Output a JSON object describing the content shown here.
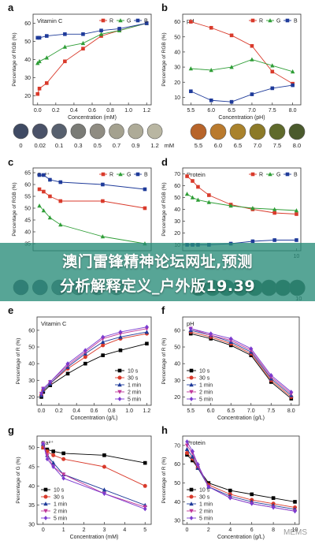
{
  "banner": {
    "line1": "澳门雷锋精神论坛网址,预测",
    "line2": "分析解释定义_户外版19.39"
  },
  "watermark": "MEMS",
  "swatch_unit": "mM",
  "colors": {
    "R": "#d93a2b",
    "G": "#2f9e37",
    "B": "#1f3b9a",
    "t10s": "#000000",
    "t30s": "#d93a2b",
    "t1min": "#1f3b9a",
    "t2min": "#c0399a",
    "t5min": "#7a3bd0"
  },
  "chart_data": [
    {
      "id": "a",
      "type": "line",
      "panel_letter": "a",
      "title": "Vitamin C",
      "xlabel": "Concentration (mM)",
      "ylabel": "Percentage of RGB (%)",
      "xlim": [
        -0.05,
        1.25
      ],
      "ylim": [
        15,
        65
      ],
      "xticks": [
        "0.0",
        "0.2",
        "0.4",
        "0.6",
        "0.8",
        "1.0",
        "1.2"
      ],
      "xtick_values": [
        0,
        0.2,
        0.4,
        0.6,
        0.8,
        1.0,
        1.2
      ],
      "yticks": [
        "20",
        "30",
        "40",
        "50",
        "60"
      ],
      "ytick_values": [
        20,
        30,
        40,
        50,
        60
      ],
      "legend_position": "top-right",
      "series": [
        {
          "name": "R",
          "marker": "square",
          "color": "#d93a2b",
          "x": [
            0,
            0.02,
            0.1,
            0.3,
            0.5,
            0.7,
            0.9,
            1.2
          ],
          "y": [
            21,
            24,
            27,
            39,
            46,
            53,
            56,
            60
          ]
        },
        {
          "name": "G",
          "marker": "triangle",
          "color": "#2f9e37",
          "x": [
            0,
            0.02,
            0.1,
            0.3,
            0.5,
            0.7,
            0.9,
            1.2
          ],
          "y": [
            38,
            39,
            41,
            47,
            49,
            54,
            56,
            60
          ]
        },
        {
          "name": "B",
          "marker": "square",
          "color": "#1f3b9a",
          "x": [
            0,
            0.02,
            0.1,
            0.3,
            0.5,
            0.7,
            0.9,
            1.2
          ],
          "y": [
            52,
            52,
            53,
            54,
            54,
            56,
            57,
            60
          ]
        }
      ]
    },
    {
      "id": "b",
      "type": "line",
      "panel_letter": "b",
      "title": "pH",
      "xlabel": "Concentration (pH)",
      "ylabel": "Percentage of RGB (%)",
      "xlim": [
        5.3,
        8.2
      ],
      "ylim": [
        5,
        65
      ],
      "xticks": [
        "5.5",
        "6.0",
        "6.5",
        "7.0",
        "7.5",
        "8.0"
      ],
      "xtick_values": [
        5.5,
        6.0,
        6.5,
        7.0,
        7.5,
        8.0
      ],
      "yticks": [
        "10",
        "20",
        "30",
        "40",
        "50",
        "60"
      ],
      "ytick_values": [
        10,
        20,
        30,
        40,
        50,
        60
      ],
      "legend_position": "top-right",
      "series": [
        {
          "name": "R",
          "marker": "square",
          "color": "#d93a2b",
          "x": [
            5.5,
            6.0,
            6.5,
            7.0,
            7.5,
            8.0
          ],
          "y": [
            60,
            56,
            51,
            44,
            27,
            19
          ]
        },
        {
          "name": "G",
          "marker": "triangle",
          "color": "#2f9e37",
          "x": [
            5.5,
            6.0,
            6.5,
            7.0,
            7.5,
            8.0
          ],
          "y": [
            29,
            28,
            30,
            35,
            31,
            27
          ]
        },
        {
          "name": "B",
          "marker": "square",
          "color": "#1f3b9a",
          "x": [
            5.5,
            6.0,
            6.5,
            7.0,
            7.5,
            8.0
          ],
          "y": [
            14,
            8,
            7,
            12,
            16,
            18
          ]
        }
      ]
    },
    {
      "id": "c",
      "type": "line",
      "panel_letter": "c",
      "title": "Ca²⁺",
      "xlabel": "",
      "ylabel": "Percentage of RGB (%)",
      "xlim": [
        -0.3,
        5.3
      ],
      "ylim": [
        32,
        67
      ],
      "xticks": [],
      "xtick_values": [],
      "yticks": [
        "35",
        "40",
        "45",
        "50",
        "55",
        "60",
        "65"
      ],
      "ytick_values": [
        35,
        40,
        45,
        50,
        55,
        60,
        65
      ],
      "legend_position": "top-right",
      "series": [
        {
          "name": "R",
          "marker": "square",
          "color": "#d93a2b",
          "x": [
            0,
            0.2,
            0.5,
            1,
            3,
            5
          ],
          "y": [
            58,
            57,
            55,
            53,
            53,
            50
          ]
        },
        {
          "name": "G",
          "marker": "triangle",
          "color": "#2f9e37",
          "x": [
            0,
            0.2,
            0.5,
            1,
            3,
            5
          ],
          "y": [
            51,
            49,
            46,
            43,
            38,
            35
          ]
        },
        {
          "name": "B",
          "marker": "square",
          "color": "#1f3b9a",
          "x": [
            0,
            0.2,
            0.5,
            1,
            3,
            5
          ],
          "y": [
            64,
            64,
            62,
            61,
            60,
            58
          ]
        }
      ]
    },
    {
      "id": "d",
      "type": "line",
      "panel_letter": "d",
      "title": "Protein",
      "xlabel": "",
      "ylabel": "Percentage of RGB (%)",
      "xlim": [
        -0.4,
        10.4
      ],
      "ylim": [
        5,
        75
      ],
      "xticks": [
        "10"
      ],
      "xtick_values": [
        10
      ],
      "yticks": [
        "10",
        "20",
        "30",
        "40",
        "50",
        "60",
        "70"
      ],
      "ytick_values": [
        10,
        20,
        30,
        40,
        50,
        60,
        70
      ],
      "legend_position": "top-right",
      "series": [
        {
          "name": "R",
          "marker": "square",
          "color": "#d93a2b",
          "x": [
            0,
            0.5,
            1,
            2,
            4,
            6,
            8,
            10
          ],
          "y": [
            68,
            64,
            59,
            52,
            44,
            40,
            37,
            36
          ]
        },
        {
          "name": "G",
          "marker": "triangle",
          "color": "#2f9e37",
          "x": [
            0,
            0.5,
            1,
            2,
            4,
            6,
            8,
            10
          ],
          "y": [
            53,
            50,
            48,
            46,
            43,
            41,
            40,
            39
          ]
        },
        {
          "name": "B",
          "marker": "square",
          "color": "#1f3b9a",
          "x": [
            0,
            0.5,
            1,
            2,
            4,
            6,
            8,
            10
          ],
          "y": [
            10,
            10,
            10,
            10,
            11,
            13,
            14,
            14
          ]
        }
      ]
    },
    {
      "id": "e",
      "type": "line",
      "panel_letter": "e",
      "title": "Vitamin C",
      "xlabel": "Concentration (g/L)",
      "ylabel": "Percentage of R (%)",
      "xlim": [
        -0.05,
        1.25
      ],
      "ylim": [
        15,
        68
      ],
      "xticks": [
        "0.0",
        "0.2",
        "0.4",
        "0.6",
        "0.8",
        "1.0",
        "1.2"
      ],
      "xtick_values": [
        0,
        0.2,
        0.4,
        0.6,
        0.8,
        1.0,
        1.2
      ],
      "yticks": [
        "20",
        "30",
        "40",
        "50",
        "60"
      ],
      "ytick_values": [
        20,
        30,
        40,
        50,
        60
      ],
      "legend_position": "bottom-right",
      "series": [
        {
          "name": "10 s",
          "marker": "square",
          "color": "#000000",
          "x": [
            0,
            0.02,
            0.1,
            0.3,
            0.5,
            0.7,
            0.9,
            1.2
          ],
          "y": [
            20,
            23,
            27,
            34,
            40,
            45,
            48,
            52
          ]
        },
        {
          "name": "30 s",
          "marker": "circle",
          "color": "#d93a2b",
          "x": [
            0,
            0.02,
            0.1,
            0.3,
            0.5,
            0.7,
            0.9,
            1.2
          ],
          "y": [
            21,
            24,
            28,
            37,
            44,
            51,
            55,
            58
          ]
        },
        {
          "name": "1 min",
          "marker": "triangle",
          "color": "#1f3b9a",
          "x": [
            0,
            0.02,
            0.1,
            0.3,
            0.5,
            0.7,
            0.9,
            1.2
          ],
          "y": [
            21,
            24,
            28,
            38,
            46,
            53,
            56,
            59
          ]
        },
        {
          "name": "2 min",
          "marker": "triangle-down",
          "color": "#c0399a",
          "x": [
            0,
            0.02,
            0.1,
            0.3,
            0.5,
            0.7,
            0.9,
            1.2
          ],
          "y": [
            22,
            25,
            29,
            39,
            47,
            55,
            58,
            61
          ]
        },
        {
          "name": "5 min",
          "marker": "diamond",
          "color": "#7a3bd0",
          "x": [
            0,
            0.02,
            0.1,
            0.3,
            0.5,
            0.7,
            0.9,
            1.2
          ],
          "y": [
            22,
            25,
            29,
            40,
            48,
            56,
            59,
            62
          ]
        }
      ]
    },
    {
      "id": "f",
      "type": "line",
      "panel_letter": "f",
      "title": "pH",
      "xlabel": "Concentration (g/L)",
      "ylabel": "Percentage of R (%)",
      "xlim": [
        5.3,
        8.2
      ],
      "ylim": [
        15,
        68
      ],
      "xticks": [
        "5.5",
        "6.0",
        "6.5",
        "7.0",
        "7.5",
        "8.0"
      ],
      "xtick_values": [
        5.5,
        6.0,
        6.5,
        7.0,
        7.5,
        8.0
      ],
      "yticks": [
        "20",
        "30",
        "40",
        "50",
        "60"
      ],
      "ytick_values": [
        20,
        30,
        40,
        50,
        60
      ],
      "legend_position": "bottom-left",
      "series": [
        {
          "name": "10 s",
          "marker": "square",
          "color": "#000000",
          "x": [
            5.5,
            6.0,
            6.5,
            7.0,
            7.5,
            8.0
          ],
          "y": [
            58,
            55,
            51,
            45,
            29,
            19
          ]
        },
        {
          "name": "30 s",
          "marker": "circle",
          "color": "#d93a2b",
          "x": [
            5.5,
            6.0,
            6.5,
            7.0,
            7.5,
            8.0
          ],
          "y": [
            59,
            56,
            52,
            46,
            30,
            20
          ]
        },
        {
          "name": "1 min",
          "marker": "triangle",
          "color": "#1f3b9a",
          "x": [
            5.5,
            6.0,
            6.5,
            7.0,
            7.5,
            8.0
          ],
          "y": [
            60,
            57,
            53,
            47,
            31,
            21
          ]
        },
        {
          "name": "2 min",
          "marker": "triangle-down",
          "color": "#c0399a",
          "x": [
            5.5,
            6.0,
            6.5,
            7.0,
            7.5,
            8.0
          ],
          "y": [
            61,
            57,
            54,
            48,
            32,
            22
          ]
        },
        {
          "name": "5 min",
          "marker": "diamond",
          "color": "#7a3bd0",
          "x": [
            5.5,
            6.0,
            6.5,
            7.0,
            7.5,
            8.0
          ],
          "y": [
            61,
            58,
            55,
            49,
            33,
            23
          ]
        }
      ]
    },
    {
      "id": "g",
      "type": "line",
      "panel_letter": "g",
      "title": "Ca²⁺",
      "xlabel": "Concentration (mM)",
      "ylabel": "Percentage of G (%)",
      "xlim": [
        -0.3,
        5.3
      ],
      "ylim": [
        30,
        53
      ],
      "xticks": [
        "0",
        "1",
        "2",
        "3",
        "4",
        "5"
      ],
      "xtick_values": [
        0,
        1,
        2,
        3,
        4,
        5
      ],
      "yticks": [
        "30",
        "35",
        "40",
        "45",
        "50"
      ],
      "ytick_values": [
        30,
        35,
        40,
        45,
        50
      ],
      "legend_position": "bottom-left",
      "series": [
        {
          "name": "10 s",
          "marker": "square",
          "color": "#000000",
          "x": [
            0,
            0.2,
            0.5,
            1,
            3,
            5
          ],
          "y": [
            50,
            49.5,
            49,
            48.5,
            48,
            46
          ]
        },
        {
          "name": "30 s",
          "marker": "circle",
          "color": "#d93a2b",
          "x": [
            0,
            0.2,
            0.5,
            1,
            3,
            5
          ],
          "y": [
            50,
            49,
            48,
            47,
            45,
            40
          ]
        },
        {
          "name": "1 min",
          "marker": "triangle",
          "color": "#1f3b9a",
          "x": [
            0,
            0.2,
            0.5,
            1,
            3,
            5
          ],
          "y": [
            51,
            48,
            46,
            43,
            39,
            35
          ]
        },
        {
          "name": "2 min",
          "marker": "triangle-down",
          "color": "#c0399a",
          "x": [
            0,
            0.2,
            0.5,
            1,
            3,
            5
          ],
          "y": [
            51,
            48,
            45,
            43,
            38,
            34.5
          ]
        },
        {
          "name": "5 min",
          "marker": "diamond",
          "color": "#7a3bd0",
          "x": [
            0,
            0.2,
            0.5,
            1,
            3,
            5
          ],
          "y": [
            51,
            47,
            45,
            42,
            38,
            34
          ]
        }
      ]
    },
    {
      "id": "h",
      "type": "line",
      "panel_letter": "h",
      "title": "Protein",
      "xlabel": "Concentration (g/L)",
      "ylabel": "Percentage of R (%)",
      "xlim": [
        -0.4,
        10.4
      ],
      "ylim": [
        28,
        75
      ],
      "xticks": [
        "0",
        "2",
        "4",
        "6",
        "8",
        "10"
      ],
      "xtick_values": [
        0,
        2,
        4,
        6,
        8,
        10
      ],
      "yticks": [
        "30",
        "40",
        "50",
        "60",
        "70"
      ],
      "ytick_values": [
        30,
        40,
        50,
        60,
        70
      ],
      "legend_position": "bottom-left",
      "series": [
        {
          "name": "10 s",
          "marker": "square",
          "color": "#000000",
          "x": [
            0,
            0.5,
            1,
            2,
            4,
            6,
            8,
            10
          ],
          "y": [
            65,
            62,
            58,
            50,
            46,
            44,
            42,
            40
          ]
        },
        {
          "name": "30 s",
          "marker": "circle",
          "color": "#d93a2b",
          "x": [
            0,
            0.5,
            1,
            2,
            4,
            6,
            8,
            10
          ],
          "y": [
            66,
            63,
            58,
            49,
            44,
            41,
            39,
            37
          ]
        },
        {
          "name": "1 min",
          "marker": "triangle",
          "color": "#1f3b9a",
          "x": [
            0,
            0.5,
            1,
            2,
            4,
            6,
            8,
            10
          ],
          "y": [
            68,
            64,
            58,
            48,
            43,
            40,
            38,
            36
          ]
        },
        {
          "name": "2 min",
          "marker": "triangle-down",
          "color": "#c0399a",
          "x": [
            0,
            0.5,
            1,
            2,
            4,
            6,
            8,
            10
          ],
          "y": [
            70,
            66,
            59,
            48,
            42,
            39,
            37,
            35
          ]
        },
        {
          "name": "5 min",
          "marker": "diamond",
          "color": "#7a3bd0",
          "x": [
            0,
            0.5,
            1,
            2,
            4,
            6,
            8,
            10
          ],
          "y": [
            72,
            67,
            60,
            48,
            42,
            39,
            37,
            35
          ]
        }
      ]
    }
  ],
  "swatches": [
    {
      "panel": "a",
      "labels": [
        "0",
        "0.02",
        "0.1",
        "0.3",
        "0.5",
        "0.7",
        "0.9",
        "1.2"
      ],
      "colors": [
        "#3f4a63",
        "#4a5268",
        "#57606e",
        "#7a7b76",
        "#8f8c82",
        "#a4a18f",
        "#aeab98",
        "#b9b6a2"
      ]
    },
    {
      "panel": "b",
      "labels": [
        "5.5",
        "6.0",
        "6.5",
        "7.0",
        "7.5",
        "8.0"
      ],
      "colors": [
        "#b7642a",
        "#b97a2e",
        "#a9822c",
        "#8c7a28",
        "#5f6a2b",
        "#4a5a2c"
      ]
    },
    {
      "panel": "c",
      "labels": [],
      "colors": [
        "#4d5570",
        "#556078",
        "#6a7280",
        "#7a7f85",
        "#84878a",
        "#8b8d8e"
      ]
    },
    {
      "panel": "d",
      "labels": [
        "10"
      ],
      "colors": [
        "#3f5a4a",
        "#3b5a4a",
        "#3a5849",
        "#3a5748",
        "#3a5647",
        "#3a5547",
        "#3a5446",
        "#3a5346"
      ]
    }
  ]
}
